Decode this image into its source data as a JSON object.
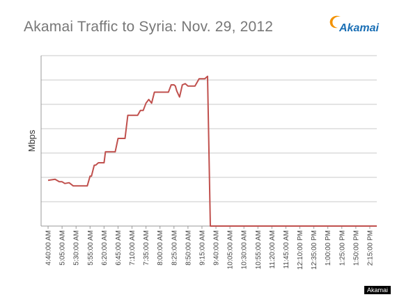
{
  "brand": {
    "logo_text": "Akamai",
    "watermark": "Akamai"
  },
  "colors": {
    "line": "#c0504d",
    "grid": "#c8c8c8",
    "axis": "#999999",
    "logo_blue": "#1a6fb5",
    "logo_orange": "#f39200"
  },
  "chart_data": {
    "type": "line",
    "title": "Akamai Traffic to Syria: Nov. 29, 2012",
    "xlabel": "",
    "ylabel": "Mbps",
    "categories": [
      "4:40:00 AM",
      "5:05:00 AM",
      "5:30:00 AM",
      "5:55:00 AM",
      "6:20:00 AM",
      "6:45:00 AM",
      "7:10:00 AM",
      "7:35:00 AM",
      "8:00:00 AM",
      "8:25:00 AM",
      "8:50:00 AM",
      "9:15:00 AM",
      "9:40:00 AM",
      "10:05:00 AM",
      "10:30:00 AM",
      "10:55:00 AM",
      "11:20:00 AM",
      "11:45:00 AM",
      "12:10:00 PM",
      "12:35:00 PM",
      "1:00:00 PM",
      "1:25:00 PM",
      "1:50:00 PM",
      "2:15:00 PM"
    ],
    "ylim": [
      0,
      7
    ],
    "ytick_count": 7,
    "grid": true,
    "legend": "none",
    "series": [
      {
        "x": [
          0,
          0.5,
          0.8,
          1.0,
          1.2,
          1.5,
          1.8,
          2.1,
          2.2,
          2.4,
          2.8,
          3.0,
          3.1,
          3.3,
          3.4,
          3.6,
          3.8,
          4.0,
          4.1,
          4.3,
          4.5,
          4.7,
          4.8,
          5.0,
          5.2,
          5.5,
          5.7,
          5.9,
          6.1,
          6.3,
          6.4,
          6.6,
          6.8,
          7.0,
          7.2,
          7.4,
          7.6,
          7.7,
          7.9,
          8.1,
          8.3,
          8.5,
          8.6,
          8.8,
          9.0,
          9.1,
          9.2,
          9.4,
          9.6,
          9.8,
          10.0,
          10.5,
          10.8,
          11.0,
          11.2,
          11.4,
          11.6,
          11.8,
          12.0,
          12.2,
          12.4,
          12.6,
          12.8,
          13.0,
          13.1,
          13.3,
          13.5,
          13.9,
          14.0,
          14.3,
          15,
          16,
          17,
          18,
          19,
          20,
          21,
          22,
          23,
          23.5
        ],
        "values": [
          1.88,
          1.92,
          1.82,
          1.82,
          1.75,
          1.78,
          1.65,
          1.65,
          1.65,
          1.65,
          1.65,
          2.05,
          2.05,
          2.5,
          2.5,
          2.6,
          2.6,
          2.6,
          3.05,
          3.05,
          3.05,
          3.05,
          3.05,
          3.6,
          3.6,
          3.6,
          4.55,
          4.55,
          4.55,
          4.55,
          4.55,
          4.75,
          4.75,
          5.05,
          5.2,
          5.05,
          5.5,
          5.5,
          5.5,
          5.5,
          5.5,
          5.5,
          5.5,
          5.8,
          5.8,
          5.75,
          5.55,
          5.3,
          5.8,
          5.85,
          5.75,
          5.75,
          6.05,
          6.05,
          6.05,
          6.15,
          0,
          0,
          0,
          0,
          0,
          0,
          0,
          0,
          0,
          0,
          0,
          0,
          0,
          0,
          0,
          0,
          0,
          0,
          0,
          0,
          0,
          0,
          0,
          0
        ]
      }
    ]
  }
}
